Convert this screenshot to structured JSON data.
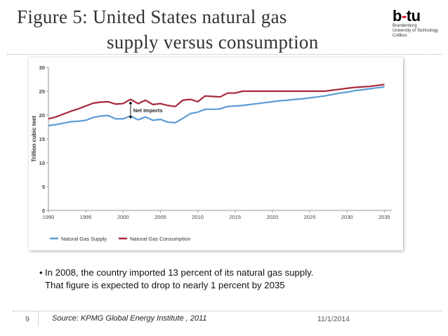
{
  "slide": {
    "title_line1": "Figure 5: United States natural gas",
    "title_line2": "supply versus consumption",
    "logo": {
      "mark_left": "b",
      "mark_dash": "-",
      "mark_right": "tu",
      "lines": [
        "Brandenburg",
        "University of Technology",
        "Cottbus"
      ]
    },
    "bullets": [
      {
        "marker": "•",
        "line1": "In 2008, the country imported 13 percent of its natural gas supply.",
        "line2": "That figure is expected to drop to nearly 1 percent by 2035"
      }
    ],
    "footer": {
      "page_number": "9",
      "source": "Source: KPMG Global Energy Institute , 2011",
      "date": "11/1/2014"
    }
  },
  "colors": {
    "supply": "#5b9bd5",
    "consumption": "#a8283c",
    "axis": "#9a9a9a",
    "title": "#333333",
    "rule": "#9fb3c8"
  },
  "chart_data": {
    "type": "line",
    "title": "",
    "xlabel": "",
    "ylabel": "Trillion cubic teet",
    "xlim": [
      1990,
      2036
    ],
    "ylim": [
      0,
      30
    ],
    "x_ticks": [
      1990,
      1995,
      2000,
      2005,
      2010,
      2015,
      2020,
      2025,
      2030,
      2035
    ],
    "y_ticks": [
      0,
      5,
      10,
      15,
      20,
      25,
      30
    ],
    "grid": false,
    "legend_position": "bottom-left",
    "annotation": {
      "text": "Net Imports",
      "x": 2001,
      "y_from": 19.2,
      "y_to": 22.9
    },
    "series": [
      {
        "name": "Natural Gas Supply",
        "color_key": "supply",
        "x": [
          1990,
          1991,
          1992,
          1993,
          1994,
          1995,
          1996,
          1997,
          1998,
          1999,
          2000,
          2001,
          2002,
          2003,
          2004,
          2005,
          2006,
          2007,
          2008,
          2009,
          2010,
          2011,
          2012,
          2013,
          2014,
          2015,
          2016,
          2017,
          2018,
          2019,
          2020,
          2021,
          2022,
          2023,
          2024,
          2025,
          2026,
          2027,
          2028,
          2029,
          2030,
          2031,
          2032,
          2033,
          2034,
          2035
        ],
        "values": [
          17.8,
          18.0,
          18.3,
          18.6,
          18.7,
          18.9,
          19.5,
          19.8,
          19.9,
          19.2,
          19.2,
          19.8,
          19.0,
          19.6,
          18.9,
          19.1,
          18.5,
          18.4,
          19.3,
          20.3,
          20.6,
          21.2,
          21.2,
          21.3,
          21.8,
          21.9,
          22.0,
          22.2,
          22.4,
          22.6,
          22.8,
          23.0,
          23.1,
          23.3,
          23.4,
          23.6,
          23.8,
          24.0,
          24.3,
          24.6,
          24.8,
          25.1,
          25.3,
          25.5,
          25.7,
          25.9
        ]
      },
      {
        "name": "Natural Gas Consumption",
        "color_key": "consumption",
        "x": [
          1990,
          1991,
          1992,
          1993,
          1994,
          1995,
          1996,
          1997,
          1998,
          1999,
          2000,
          2001,
          2002,
          2003,
          2004,
          2005,
          2006,
          2007,
          2008,
          2009,
          2010,
          2011,
          2012,
          2013,
          2014,
          2015,
          2016,
          2017,
          2018,
          2019,
          2020,
          2021,
          2022,
          2023,
          2024,
          2025,
          2026,
          2027,
          2028,
          2029,
          2030,
          2031,
          2032,
          2033,
          2034,
          2035
        ],
        "values": [
          19.2,
          19.6,
          20.2,
          20.8,
          21.3,
          21.9,
          22.5,
          22.7,
          22.8,
          22.3,
          22.4,
          23.3,
          22.4,
          23.1,
          22.2,
          22.4,
          22.0,
          21.8,
          23.1,
          23.3,
          22.8,
          24.0,
          23.9,
          23.8,
          24.6,
          24.6,
          25.0,
          25.0,
          25.0,
          25.0,
          25.0,
          25.0,
          25.0,
          25.0,
          25.0,
          25.0,
          25.0,
          25.0,
          25.2,
          25.4,
          25.6,
          25.8,
          25.9,
          26.0,
          26.2,
          26.4
        ]
      }
    ]
  }
}
